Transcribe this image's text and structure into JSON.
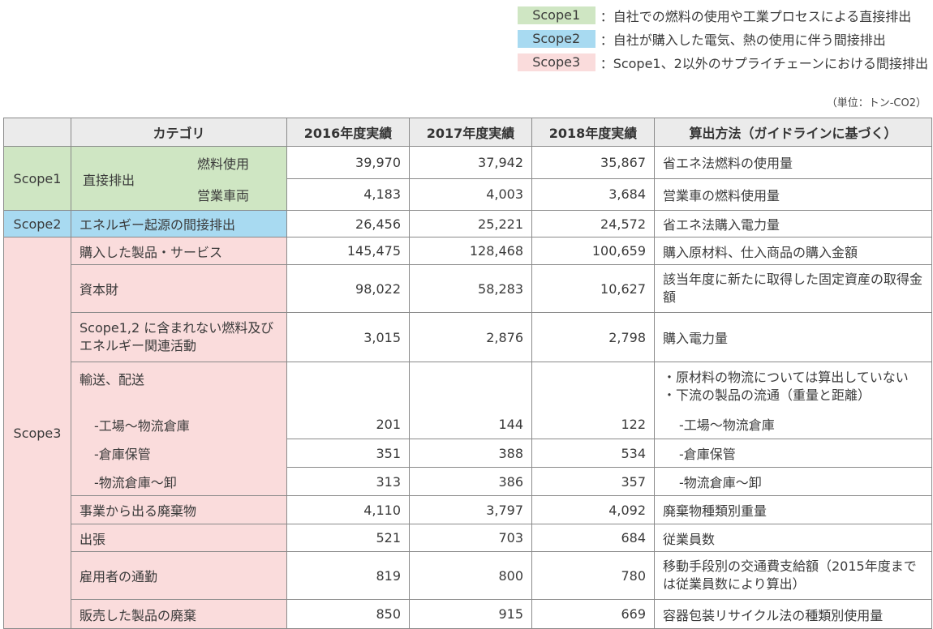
{
  "legend": [
    {
      "tag": "Scope1",
      "text": "：自社での燃料の使用や工業プロセスによる直接排出",
      "color": "#cfe6c3"
    },
    {
      "tag": "Scope2",
      "text": "：自社が購入した電気、熱の使用に伴う間接排出",
      "color": "#a8daf1"
    },
    {
      "tag": "Scope3",
      "text": "：Scope1、2以外のサプライチェーンにおける間接排出",
      "color": "#fadcdc"
    }
  ],
  "unit": "（単位：トン-CO2）",
  "headers": {
    "category": "カテゴリ",
    "y2016": "2016年度実績",
    "y2017": "2017年度実績",
    "y2018": "2018年度実績",
    "method": "算出方法（ガイドラインに基づく）"
  },
  "scope1": {
    "label": "Scope1",
    "category": "直接排出",
    "rows": [
      {
        "sub": "燃料使用",
        "v2016": "39,970",
        "v2017": "37,942",
        "v2018": "35,867",
        "method": "省エネ法燃料の使用量"
      },
      {
        "sub": "営業車両",
        "v2016": "4,183",
        "v2017": "4,003",
        "v2018": "3,684",
        "method": "営業車の燃料使用量"
      }
    ]
  },
  "scope2": {
    "label": "Scope2",
    "category": "エネルギー起源の間接排出",
    "v2016": "26,456",
    "v2017": "25,221",
    "v2018": "24,572",
    "method": "省エネ法購入電力量"
  },
  "scope3": {
    "label": "Scope3",
    "purchased": {
      "category": "購入した製品・サービス",
      "v2016": "145,475",
      "v2017": "128,468",
      "v2018": "100,659",
      "method": "購入原材料、仕入商品の購入金額"
    },
    "capital": {
      "category": "資本財",
      "v2016": "98,022",
      "v2017": "58,283",
      "v2018": "10,627",
      "method": "該当年度に新たに取得した固定資産の取得金額"
    },
    "fuel": {
      "category": "Scope1,2 に含まれない燃料及びエネルギー関連活動",
      "v2016": "3,015",
      "v2017": "2,876",
      "v2018": "2,798",
      "method": "購入電力量"
    },
    "transport": {
      "category": "輸送、配送",
      "method_lines": [
        "・原材料の物流については算出していない",
        "・下流の製品の流通（重量と距離）"
      ],
      "rows": [
        {
          "sub": "-工場～物流倉庫",
          "v2016": "201",
          "v2017": "144",
          "v2018": "122",
          "method": "-工場～物流倉庫"
        },
        {
          "sub": "-倉庫保管",
          "v2016": "351",
          "v2017": "388",
          "v2018": "534",
          "method": "-倉庫保管"
        },
        {
          "sub": "-物流倉庫～卸",
          "v2016": "313",
          "v2017": "386",
          "v2018": "357",
          "method": "-物流倉庫～卸"
        }
      ]
    },
    "waste": {
      "category": "事業から出る廃棄物",
      "v2016": "4,110",
      "v2017": "3,797",
      "v2018": "4,092",
      "method": "廃棄物種類別重量"
    },
    "travel": {
      "category": "出張",
      "v2016": "521",
      "v2017": "703",
      "v2018": "684",
      "method": "従業員数"
    },
    "commute": {
      "category": "雇用者の通勤",
      "v2016": "819",
      "v2017": "800",
      "v2018": "780",
      "method": "移動手段別の交通費支給額（2015年度までは従業員数により算出）"
    },
    "disposal": {
      "category": "販売した製品の廃棄",
      "v2016": "850",
      "v2017": "915",
      "v2018": "669",
      "method": "容器包装リサイクル法の種類別使用量"
    }
  }
}
